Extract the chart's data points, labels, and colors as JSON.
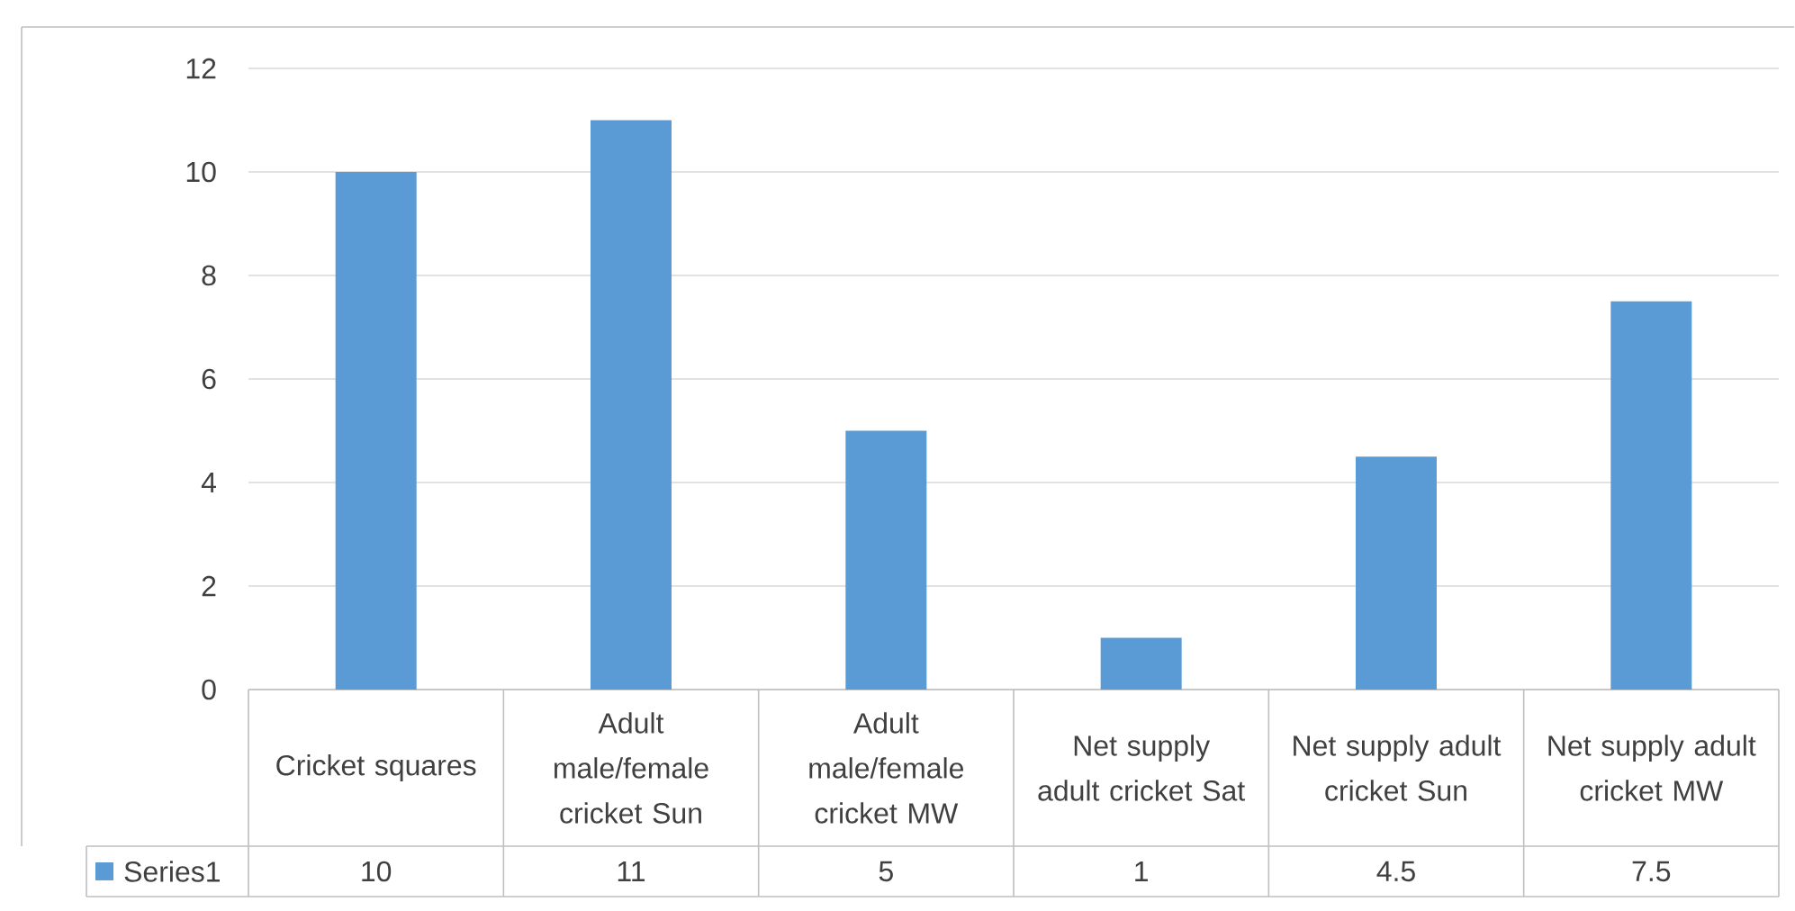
{
  "chart_data": {
    "type": "bar",
    "categories": [
      "Cricket squares",
      "Adult male/female cricket Sun",
      "Adult male/female cricket MW",
      "Net supply adult cricket Sat",
      "Net supply adult cricket Sun",
      "Net supply adult cricket MW"
    ],
    "series": [
      {
        "name": "Series1",
        "color": "#5b9bd5",
        "values": [
          10,
          11,
          5,
          1,
          4.5,
          7.5
        ]
      }
    ],
    "ylim": [
      0,
      12
    ],
    "yticks": [
      0,
      2,
      4,
      6,
      8,
      10,
      12
    ],
    "grid": "y",
    "data_labels": true
  }
}
